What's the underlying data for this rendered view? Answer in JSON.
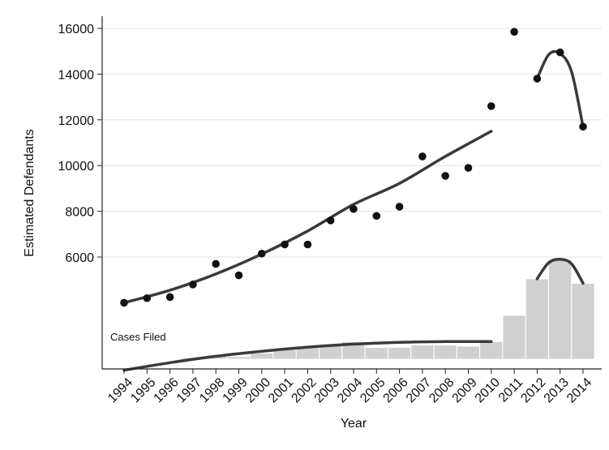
{
  "chart_data": {
    "type": "scatter",
    "title": "",
    "xlabel": "Year",
    "ylabel": "Estimated Defendants",
    "ylim": [
      1000,
      16500
    ],
    "yticks": [
      6000,
      8000,
      10000,
      12000,
      14000,
      16000
    ],
    "grid": true,
    "legend": "none",
    "categories": [
      "1994",
      "1995",
      "1996",
      "1997",
      "1998",
      "1999",
      "2000",
      "2001",
      "2002",
      "2003",
      "2004",
      "2005",
      "2006",
      "2007",
      "2008",
      "2009",
      "2010",
      "2011",
      "2012",
      "2013",
      "2014"
    ],
    "bar_color": "#d0d0d0",
    "point_color": "#111111",
    "fit_color": "#3a3a3a",
    "annotation": "Cases Filed",
    "defendants_points": {
      "x": [
        1994,
        1995,
        1996,
        1997,
        1998,
        1999,
        2000,
        2001,
        2002,
        2003,
        2004,
        2005,
        2006,
        2007,
        2008,
        2009,
        2010,
        2011,
        2012,
        2013,
        2014
      ],
      "y": [
        4000,
        4200,
        4250,
        4800,
        5700,
        5200,
        6150,
        6550,
        6550,
        7600,
        8100,
        7800,
        8200,
        10400,
        9550,
        9900,
        12600,
        15850,
        13800,
        14950,
        11700
      ]
    },
    "defendants_fit_1994_2010": {
      "x": [
        1994,
        1996,
        1998,
        2000,
        2002,
        2004,
        2006,
        2008,
        2010
      ],
      "y": [
        4000,
        4550,
        5260,
        6130,
        7140,
        8300,
        9220,
        10400,
        11500
      ]
    },
    "defendants_fit_2012_2014": {
      "x": [
        2012,
        2012.5,
        2013,
        2013.5,
        2014
      ],
      "y": [
        13800,
        14850,
        14900,
        14100,
        11700
      ]
    },
    "cases_filed_bars": {
      "x": [
        1994,
        1995,
        1996,
        1997,
        1998,
        1999,
        2000,
        2001,
        2002,
        2003,
        2004,
        2005,
        2006,
        2007,
        2008,
        2009,
        2010,
        2011,
        2012,
        2013,
        2014
      ],
      "y": [
        1050,
        1200,
        1450,
        1600,
        1650,
        1650,
        1800,
        1950,
        2050,
        2200,
        2300,
        2050,
        2050,
        2150,
        2150,
        2100,
        2300,
        3450,
        5050,
        5900,
        4850
      ]
    },
    "cases_fit_1994_2010": {
      "x": [
        1994,
        1996,
        1998,
        2000,
        2002,
        2004,
        2006,
        2008,
        2010
      ],
      "y": [
        1050,
        1380,
        1660,
        1880,
        2060,
        2190,
        2270,
        2300,
        2300
      ]
    },
    "cases_fit_2012_2014": {
      "x": [
        2012,
        2012.5,
        2013,
        2013.5,
        2014
      ],
      "y": [
        5050,
        5750,
        5900,
        5700,
        4850
      ]
    }
  }
}
